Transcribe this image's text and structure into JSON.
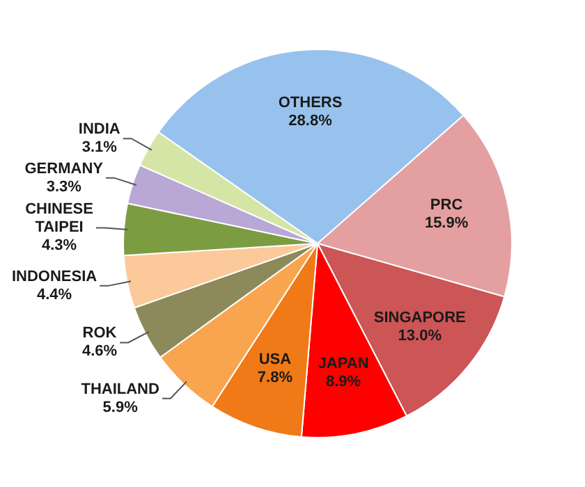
{
  "chart_data": {
    "type": "pie",
    "categories": [
      "OTHERS",
      "PRC",
      "SINGAPORE",
      "JAPAN",
      "USA",
      "THAILAND",
      "ROK",
      "INDONESIA",
      "CHINESE TAIPEI",
      "GERMANY",
      "INDIA"
    ],
    "values": [
      28.8,
      15.9,
      13.0,
      8.9,
      7.8,
      5.9,
      4.6,
      4.4,
      4.3,
      3.3,
      3.1
    ],
    "colors": [
      "#98c2ee",
      "#e4a0a0",
      "#cc5555",
      "#ff0000",
      "#f07a18",
      "#f9a550",
      "#8c8a5a",
      "#fcc99a",
      "#7c9c42",
      "#b9a7d6",
      "#d5e5a5"
    ],
    "value_labels": [
      "28.8%",
      "15.9%",
      "13.0%",
      "8.9%",
      "7.8%",
      "5.9%",
      "4.6%",
      "4.4%",
      "4.3%",
      "3.3%",
      "3.1%"
    ],
    "legend": false
  }
}
